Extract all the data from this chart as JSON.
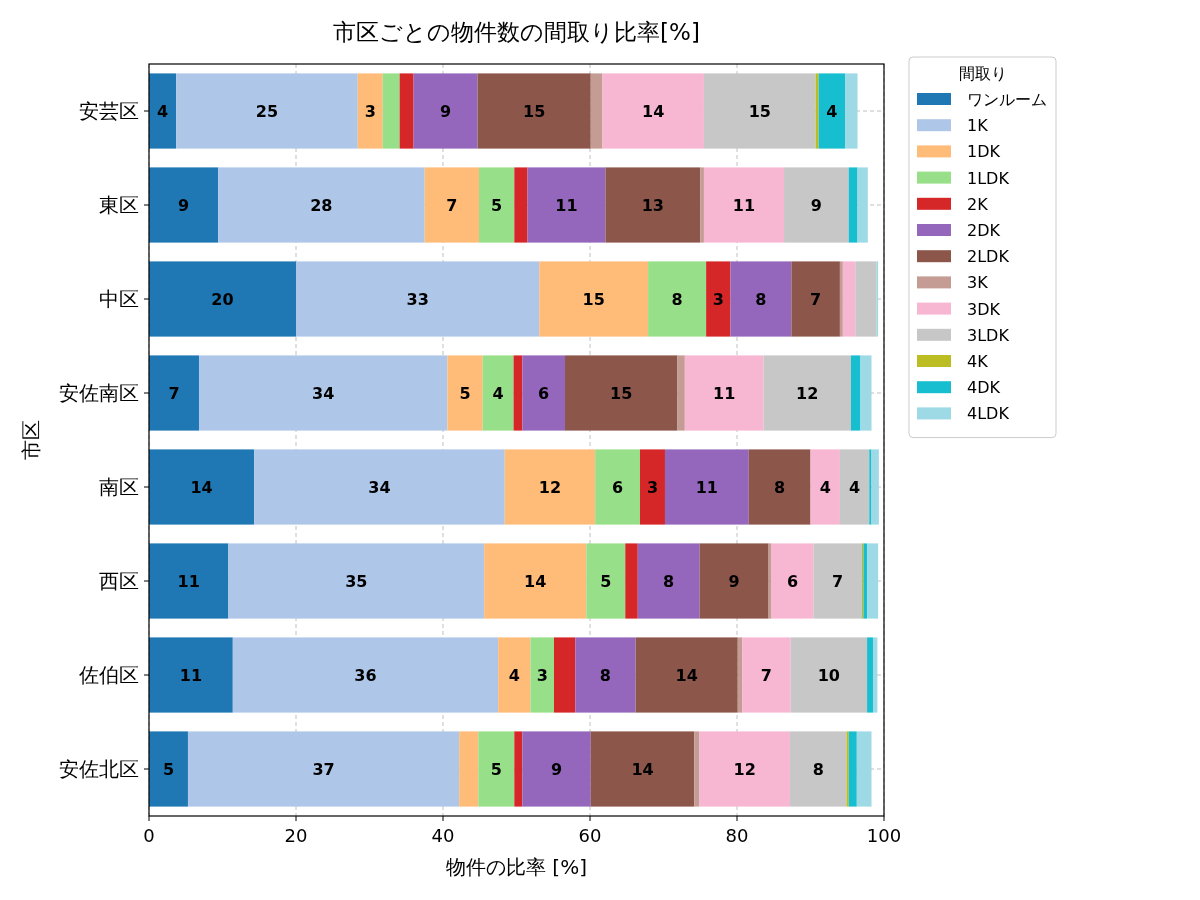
{
  "chart_data": {
    "type": "bar",
    "orientation": "horizontal",
    "stacked": true,
    "title": "市区ごとの物件数の間取り比率[%]",
    "xlabel": "物件の比率 [%]",
    "ylabel": "市区",
    "legend_title": "間取り",
    "categories": [
      "安芸区",
      "東区",
      "中区",
      "安佐南区",
      "南区",
      "西区",
      "佐伯区",
      "安佐北区"
    ],
    "xlim": [
      0,
      100
    ],
    "xticks": [
      0,
      20,
      40,
      60,
      80,
      100
    ],
    "grid": true,
    "legend": "top right",
    "series": [
      {
        "name": "ワンルーム",
        "color": "#1f77b4",
        "values": [
          3.7,
          9.4,
          20.0,
          6.8,
          14.3,
          10.8,
          11.4,
          5.3
        ],
        "value_labels": [
          "4",
          "9",
          "20",
          "7",
          "14",
          "11",
          "11",
          "5"
        ]
      },
      {
        "name": "1K",
        "color": "#aec7e8",
        "values": [
          24.7,
          28.1,
          33.1,
          33.8,
          34.1,
          34.8,
          36.1,
          36.9
        ],
        "value_labels": [
          "25",
          "28",
          "33",
          "34",
          "34",
          "35",
          "36",
          "37"
        ]
      },
      {
        "name": "1DK",
        "color": "#ffbb78",
        "values": [
          3.4,
          7.4,
          14.8,
          4.8,
          12.3,
          13.9,
          4.4,
          2.6
        ],
        "value_labels": [
          "3",
          "7",
          "15",
          "5",
          "12",
          "14",
          "4",
          null
        ]
      },
      {
        "name": "1LDK",
        "color": "#98df8a",
        "values": [
          2.3,
          4.8,
          7.9,
          4.2,
          6.1,
          5.3,
          3.2,
          4.9
        ],
        "value_labels": [
          null,
          "5",
          "8",
          "4",
          "6",
          "5",
          "3",
          "5"
        ]
      },
      {
        "name": "2K",
        "color": "#d62728",
        "values": [
          1.9,
          1.8,
          3.3,
          1.2,
          3.4,
          1.7,
          2.9,
          1.1
        ],
        "value_labels": [
          null,
          null,
          "3",
          null,
          "3",
          null,
          null,
          null
        ]
      },
      {
        "name": "2DK",
        "color": "#9467bd",
        "values": [
          8.7,
          10.6,
          8.3,
          5.8,
          11.4,
          8.4,
          8.2,
          9.3
        ],
        "value_labels": [
          "9",
          "11",
          "8",
          "6",
          "11",
          "8",
          "8",
          "9"
        ]
      },
      {
        "name": "2LDK",
        "color": "#8c564b",
        "values": [
          15.4,
          12.9,
          6.6,
          15.3,
          8.4,
          9.4,
          13.9,
          14.1
        ],
        "value_labels": [
          "15",
          "13",
          "7",
          "15",
          "8",
          "9",
          "14",
          "14"
        ]
      },
      {
        "name": "3K",
        "color": "#c49c94",
        "values": [
          1.6,
          0.5,
          0.4,
          1.0,
          0,
          0.4,
          0.6,
          0.7
        ]
      },
      {
        "name": "3DK",
        "color": "#f7b6d2",
        "values": [
          13.8,
          10.9,
          1.7,
          10.7,
          4.0,
          5.7,
          6.6,
          12.3
        ],
        "value_labels": [
          "14",
          "11",
          null,
          "11",
          "4",
          "6",
          "7",
          "12"
        ]
      },
      {
        "name": "3LDK",
        "color": "#c7c7c7",
        "values": [
          15.2,
          8.8,
          2.9,
          11.9,
          4.0,
          6.6,
          10.4,
          7.7
        ],
        "value_labels": [
          "15",
          "9",
          null,
          "12",
          "4",
          "7",
          "10",
          "8"
        ]
      },
      {
        "name": "4K",
        "color": "#bcbd22",
        "values": [
          0.4,
          null,
          0,
          0,
          0,
          0.2,
          0,
          0.3
        ]
      },
      {
        "name": "4DK",
        "color": "#17becf",
        "values": [
          3.6,
          1.2,
          0,
          1.3,
          0.3,
          0.5,
          0.8,
          1.1
        ],
        "value_labels": [
          "4",
          null,
          null,
          null,
          null,
          null,
          null,
          null
        ]
      },
      {
        "name": "4LDK",
        "color": "#9edae5",
        "values": [
          1.7,
          1.4,
          0.2,
          1.5,
          1.0,
          1.5,
          0.6,
          2.0
        ]
      }
    ]
  }
}
